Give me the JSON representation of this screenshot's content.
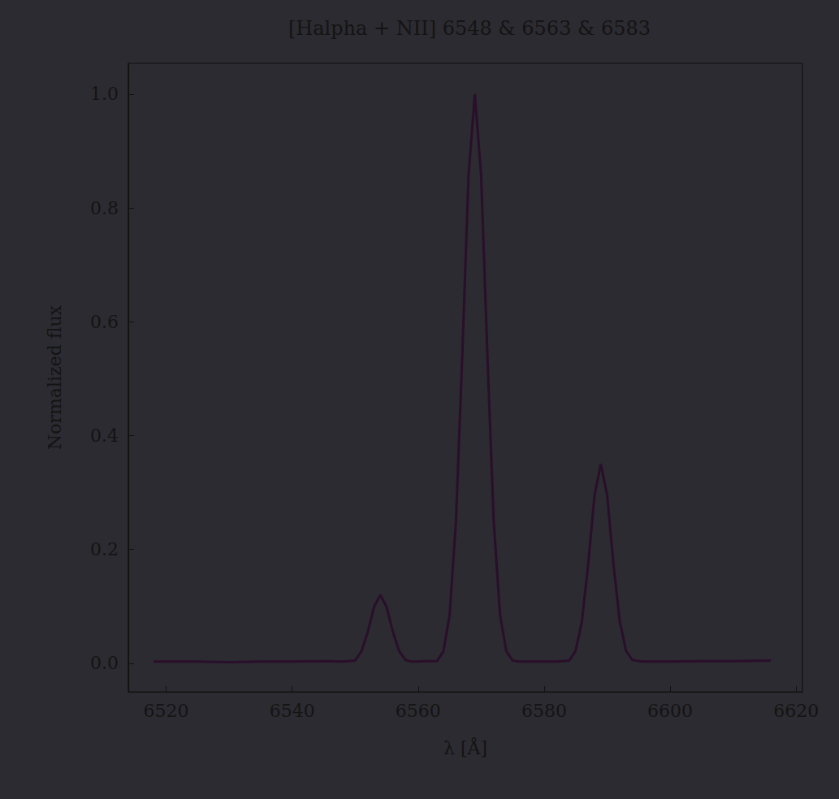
{
  "chart_data": {
    "type": "line",
    "title": "[Halpha + NII] 6548 & 6563 & 6583",
    "xlabel": "λ [Å]",
    "ylabel": "Normalized flux",
    "x": [
      6518,
      6525,
      6530,
      6535,
      6540,
      6545,
      6548,
      6549,
      6550,
      6551,
      6552,
      6553,
      6554,
      6555,
      6556,
      6557,
      6558,
      6559,
      6560,
      6561,
      6562,
      6563,
      6564,
      6565,
      6566,
      6567,
      6568,
      6569,
      6570,
      6571,
      6572,
      6573,
      6574,
      6575,
      6576,
      6577,
      6578,
      6580,
      6582,
      6583,
      6584,
      6585,
      6586,
      6587,
      6588,
      6589,
      6590,
      6591,
      6592,
      6593,
      6594,
      6595,
      6596,
      6598,
      6600,
      6605,
      6610,
      6616
    ],
    "values": [
      0.003,
      0.003,
      0.002,
      0.003,
      0.003,
      0.004,
      0.003,
      0.004,
      0.005,
      0.021,
      0.055,
      0.099,
      0.12,
      0.099,
      0.055,
      0.021,
      0.006,
      0.003,
      0.003,
      0.004,
      0.004,
      0.004,
      0.021,
      0.085,
      0.249,
      0.539,
      0.857,
      1.0,
      0.857,
      0.539,
      0.249,
      0.085,
      0.021,
      0.005,
      0.003,
      0.003,
      0.003,
      0.003,
      0.003,
      0.004,
      0.005,
      0.022,
      0.074,
      0.175,
      0.295,
      0.35,
      0.295,
      0.175,
      0.074,
      0.022,
      0.006,
      0.004,
      0.003,
      0.003,
      0.003,
      0.004,
      0.004,
      0.005
    ],
    "color": "#2a0f2a",
    "xlim": [
      6514,
      6621
    ],
    "xticks": [
      6520,
      6540,
      6560,
      6580,
      6600,
      6620
    ],
    "ylim": [
      -0.05,
      1.054
    ],
    "yticks": [
      {
        "value": 0,
        "label": "0.0"
      },
      0.2,
      0.4,
      0.6,
      0.8,
      {
        "value": 1,
        "label": "1.0"
      }
    ],
    "grid": false
  }
}
